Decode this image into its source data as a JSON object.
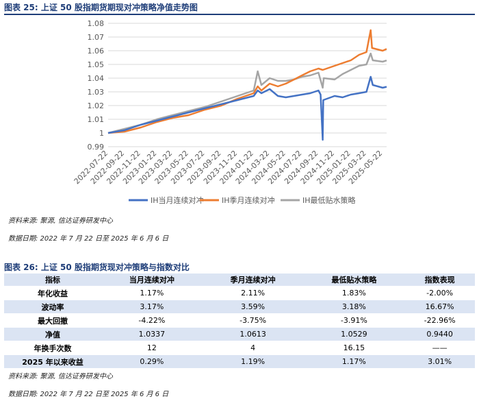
{
  "figure1": {
    "title": "图表 25:  上证 50 股指期货期现对冲策略净值走势图",
    "source": "资料来源:  聚源,  信达证券研发中心",
    "date_range": "数据日期:  2022 年 7 月 22 日至 2025 年 6 月 6 日"
  },
  "figure2": {
    "title": "图表 26:  上证 50 股指期货现对冲策略与指数对比",
    "source": "资料来源:  聚源,  信达证券研发中心",
    "date_range": "数据日期:  2022 年 7 月 22 日至 2025 年 6 月 6 日",
    "headers": [
      "指标",
      "当月连续对冲",
      "季月连续对冲",
      "最低贴水策略",
      "指数表现"
    ],
    "rows": [
      [
        "年化收益",
        "1.17%",
        "2.11%",
        "1.83%",
        "-2.00%"
      ],
      [
        "波动率",
        "3.17%",
        "3.59%",
        "3.18%",
        "16.67%"
      ],
      [
        "最大回撤",
        "-4.22%",
        "-3.75%",
        "-3.91%",
        "-22.96%"
      ],
      [
        "净值",
        "1.0337",
        "1.0613",
        "1.0529",
        "0.9440"
      ],
      [
        "年换手次数",
        "12",
        "4",
        "16.15",
        "——"
      ],
      [
        "2025 年以来收益",
        "0.29%",
        "1.19%",
        "1.17%",
        "3.01%"
      ]
    ]
  },
  "chart_data": {
    "type": "line",
    "ylim": [
      0.99,
      1.08
    ],
    "y_ticks": [
      "0.99",
      "1",
      "1.01",
      "1.02",
      "1.03",
      "1.04",
      "1.05",
      "1.06",
      "1.07",
      "1.08"
    ],
    "x_range": [
      "2022-07-22",
      "2025-06-06"
    ],
    "x_ticks": [
      "2022-07-22",
      "2022-09-22",
      "2022-11-22",
      "2023-01-22",
      "2023-03-22",
      "2023-05-22",
      "2023-07-22",
      "2023-09-22",
      "2023-11-22",
      "2024-01-22",
      "2024-03-22",
      "2024-05-22",
      "2024-07-22",
      "2024-09-22",
      "2024-11-22",
      "2025-01-22",
      "2025-03-22",
      "2025-05-22"
    ],
    "grid": "horizontal",
    "legend_position": "bottom",
    "series": [
      {
        "name": "IH当月连续对冲",
        "color": "#4472c4",
        "points": [
          [
            "2022-07-22",
            1.0
          ],
          [
            "2022-09-22",
            1.002
          ],
          [
            "2022-11-22",
            1.006
          ],
          [
            "2023-01-22",
            1.009
          ],
          [
            "2023-03-22",
            1.012
          ],
          [
            "2023-05-22",
            1.015
          ],
          [
            "2023-07-22",
            1.018
          ],
          [
            "2023-09-22",
            1.021
          ],
          [
            "2023-11-22",
            1.024
          ],
          [
            "2024-01-22",
            1.027
          ],
          [
            "2024-02-06",
            1.031
          ],
          [
            "2024-02-20",
            1.029
          ],
          [
            "2024-03-22",
            1.032
          ],
          [
            "2024-04-22",
            1.027
          ],
          [
            "2024-05-22",
            1.026
          ],
          [
            "2024-06-22",
            1.027
          ],
          [
            "2024-07-22",
            1.028
          ],
          [
            "2024-08-22",
            1.029
          ],
          [
            "2024-09-22",
            1.031
          ],
          [
            "2024-09-30",
            1.028
          ],
          [
            "2024-10-08",
            0.995
          ],
          [
            "2024-10-10",
            1.024
          ],
          [
            "2024-11-22",
            1.027
          ],
          [
            "2024-12-22",
            1.026
          ],
          [
            "2025-01-22",
            1.028
          ],
          [
            "2025-02-22",
            1.029
          ],
          [
            "2025-03-22",
            1.03
          ],
          [
            "2025-04-07",
            1.041
          ],
          [
            "2025-04-15",
            1.035
          ],
          [
            "2025-05-22",
            1.033
          ],
          [
            "2025-06-06",
            1.0337
          ]
        ]
      },
      {
        "name": "IH季月连续对冲",
        "color": "#ed7d31",
        "points": [
          [
            "2022-07-22",
            1.0
          ],
          [
            "2022-09-22",
            1.001
          ],
          [
            "2022-11-22",
            1.004
          ],
          [
            "2023-01-22",
            1.008
          ],
          [
            "2023-03-22",
            1.011
          ],
          [
            "2023-05-22",
            1.013
          ],
          [
            "2023-07-22",
            1.017
          ],
          [
            "2023-09-22",
            1.02
          ],
          [
            "2023-11-22",
            1.025
          ],
          [
            "2024-01-22",
            1.029
          ],
          [
            "2024-02-06",
            1.034
          ],
          [
            "2024-02-20",
            1.031
          ],
          [
            "2024-03-22",
            1.036
          ],
          [
            "2024-04-22",
            1.034
          ],
          [
            "2024-05-22",
            1.036
          ],
          [
            "2024-06-22",
            1.039
          ],
          [
            "2024-07-22",
            1.042
          ],
          [
            "2024-08-22",
            1.045
          ],
          [
            "2024-09-22",
            1.047
          ],
          [
            "2024-10-08",
            1.046
          ],
          [
            "2024-11-22",
            1.049
          ],
          [
            "2024-12-22",
            1.051
          ],
          [
            "2025-01-22",
            1.053
          ],
          [
            "2025-02-22",
            1.057
          ],
          [
            "2025-03-22",
            1.059
          ],
          [
            "2025-04-07",
            1.075
          ],
          [
            "2025-04-12",
            1.062
          ],
          [
            "2025-05-22",
            1.06
          ],
          [
            "2025-06-06",
            1.0613
          ]
        ]
      },
      {
        "name": "IH最低贴水策略",
        "color": "#a5a5a5",
        "points": [
          [
            "2022-07-22",
            1.0
          ],
          [
            "2022-09-22",
            1.003
          ],
          [
            "2022-11-22",
            1.006
          ],
          [
            "2023-01-22",
            1.01
          ],
          [
            "2023-03-22",
            1.013
          ],
          [
            "2023-05-22",
            1.016
          ],
          [
            "2023-07-22",
            1.019
          ],
          [
            "2023-09-22",
            1.023
          ],
          [
            "2023-11-22",
            1.027
          ],
          [
            "2024-01-22",
            1.031
          ],
          [
            "2024-02-06",
            1.045
          ],
          [
            "2024-02-20",
            1.035
          ],
          [
            "2024-03-22",
            1.04
          ],
          [
            "2024-04-22",
            1.038
          ],
          [
            "2024-05-22",
            1.038
          ],
          [
            "2024-06-22",
            1.039
          ],
          [
            "2024-07-22",
            1.041
          ],
          [
            "2024-08-22",
            1.042
          ],
          [
            "2024-09-22",
            1.044
          ],
          [
            "2024-10-08",
            1.033
          ],
          [
            "2024-10-12",
            1.04
          ],
          [
            "2024-11-22",
            1.039
          ],
          [
            "2024-12-22",
            1.043
          ],
          [
            "2025-01-22",
            1.046
          ],
          [
            "2025-02-22",
            1.049
          ],
          [
            "2025-03-22",
            1.05
          ],
          [
            "2025-04-07",
            1.058
          ],
          [
            "2025-04-15",
            1.053
          ],
          [
            "2025-05-22",
            1.052
          ],
          [
            "2025-06-06",
            1.0529
          ]
        ]
      }
    ]
  }
}
